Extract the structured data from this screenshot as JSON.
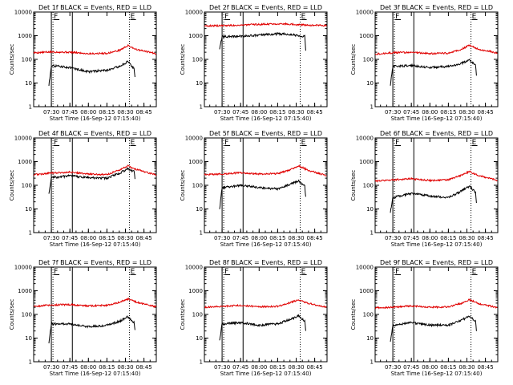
{
  "chart_data": [
    {
      "type": "line",
      "title": "Det 1f BLACK = Events, RED = LLD",
      "xlabel": "Start Time (16-Sep-12 07:15:40)",
      "ylabel": "Counts/sec",
      "xticks": [
        "07:30",
        "07:45",
        "08:00",
        "08:15",
        "08:30",
        "08:45"
      ],
      "yticks": [
        "1",
        "10",
        "100",
        "1000",
        "10000"
      ],
      "y_scale": "log",
      "ylim": [
        1,
        10000
      ],
      "xlim": [
        "07:15:40",
        "08:55:00"
      ],
      "markers": [
        {
          "label": "F",
          "time": "07:30"
        },
        {
          "label": "E",
          "time": "08:32"
        }
      ],
      "vlines_solid": [
        "07:30",
        "07:47"
      ],
      "vlines_dotted": [
        "07:30",
        "08:32"
      ],
      "series": [
        {
          "color": "#e00000",
          "x": [
            "07:15:40",
            "07:30",
            "07:45",
            "08:00",
            "08:15",
            "08:25",
            "08:32",
            "08:40",
            "08:50",
            "08:55"
          ],
          "y": [
            190,
            205,
            200,
            175,
            180,
            240,
            380,
            250,
            200,
            170
          ]
        },
        {
          "color": "#000000",
          "x": [
            "07:28",
            "07:30",
            "07:45",
            "08:00",
            "08:15",
            "08:25",
            "08:32",
            "08:37",
            "08:38"
          ],
          "y": [
            8,
            55,
            45,
            30,
            35,
            50,
            80,
            40,
            14
          ]
        }
      ]
    },
    {
      "type": "line",
      "title": "Det 2f BLACK = Events, RED = LLD",
      "xlabel": "Start Time (16-Sep-12 07:15:40)",
      "ylabel": "Counts/sec",
      "xticks": [
        "07:30",
        "07:45",
        "08:00",
        "08:15",
        "08:30",
        "08:45"
      ],
      "yticks": [
        "1",
        "10",
        "100",
        "1000",
        "10000"
      ],
      "y_scale": "log",
      "ylim": [
        1,
        10000
      ],
      "xlim": [
        "07:15:40",
        "08:55:00"
      ],
      "markers": [
        {
          "label": "F",
          "time": "07:30"
        },
        {
          "label": "E",
          "time": "08:32"
        }
      ],
      "vlines_solid": [
        "07:30",
        "07:47"
      ],
      "vlines_dotted": [
        "07:30",
        "08:32"
      ],
      "series": [
        {
          "color": "#e00000",
          "x": [
            "07:15:40",
            "07:30",
            "07:45",
            "08:00",
            "08:15",
            "08:25",
            "08:32",
            "08:40",
            "08:50",
            "08:55"
          ],
          "y": [
            2600,
            2650,
            2800,
            3000,
            3200,
            3100,
            2900,
            2800,
            2700,
            2650
          ]
        },
        {
          "color": "#000000",
          "x": [
            "07:28",
            "07:30",
            "07:45",
            "08:00",
            "08:15",
            "08:25",
            "08:32",
            "08:37",
            "08:38"
          ],
          "y": [
            280,
            900,
            950,
            1050,
            1200,
            1150,
            1000,
            950,
            130
          ]
        }
      ]
    },
    {
      "type": "line",
      "title": "Det 3f BLACK = Events, RED = LLD",
      "xlabel": "Start Time (16-Sep-12 07:15:40)",
      "ylabel": "Counts/sec",
      "xticks": [
        "07:30",
        "07:45",
        "08:00",
        "08:15",
        "08:30",
        "08:45"
      ],
      "yticks": [
        "1",
        "10",
        "100",
        "1000",
        "10000"
      ],
      "y_scale": "log",
      "ylim": [
        1,
        10000
      ],
      "xlim": [
        "07:15:40",
        "08:55:00"
      ],
      "markers": [
        {
          "label": "F",
          "time": "07:30"
        },
        {
          "label": "E",
          "time": "08:32"
        }
      ],
      "vlines_solid": [
        "07:30",
        "07:47"
      ],
      "vlines_dotted": [
        "07:30",
        "08:32"
      ],
      "series": [
        {
          "color": "#e00000",
          "x": [
            "07:15:40",
            "07:30",
            "07:45",
            "08:00",
            "08:15",
            "08:25",
            "08:32",
            "08:40",
            "08:50",
            "08:55"
          ],
          "y": [
            170,
            190,
            200,
            175,
            185,
            260,
            390,
            260,
            210,
            180
          ]
        },
        {
          "color": "#000000",
          "x": [
            "07:28",
            "07:30",
            "07:45",
            "08:00",
            "08:15",
            "08:25",
            "08:32",
            "08:37",
            "08:38"
          ],
          "y": [
            8,
            50,
            55,
            45,
            50,
            65,
            95,
            55,
            16
          ]
        }
      ]
    },
    {
      "type": "line",
      "title": "Det 4f BLACK = Events, RED = LLD",
      "xlabel": "Start Time (16-Sep-12 07:15:40)",
      "ylabel": "Counts/sec",
      "xticks": [
        "07:30",
        "07:45",
        "08:00",
        "08:15",
        "08:30",
        "08:45"
      ],
      "yticks": [
        "1",
        "10",
        "100",
        "1000",
        "10000"
      ],
      "y_scale": "log",
      "ylim": [
        1,
        10000
      ],
      "xlim": [
        "07:15:40",
        "08:55:00"
      ],
      "markers": [
        {
          "label": "F",
          "time": "07:30"
        },
        {
          "label": "E",
          "time": "08:32"
        }
      ],
      "vlines_solid": [
        "07:30",
        "07:47"
      ],
      "vlines_dotted": [
        "07:30",
        "08:32"
      ],
      "series": [
        {
          "color": "#e00000",
          "x": [
            "07:15:40",
            "07:30",
            "07:45",
            "08:00",
            "08:15",
            "08:25",
            "08:32",
            "08:40",
            "08:50",
            "08:55"
          ],
          "y": [
            280,
            330,
            360,
            300,
            280,
            450,
            650,
            450,
            320,
            270
          ]
        },
        {
          "color": "#000000",
          "x": [
            "07:28",
            "07:30",
            "07:45",
            "08:00",
            "08:15",
            "08:25",
            "08:32",
            "08:37",
            "08:38"
          ],
          "y": [
            45,
            210,
            250,
            210,
            200,
            320,
            500,
            380,
            140
          ]
        }
      ]
    },
    {
      "type": "line",
      "title": "Det 5f BLACK = Events, RED = LLD",
      "xlabel": "Start Time (16-Sep-12 07:15:40)",
      "ylabel": "Counts/sec",
      "xticks": [
        "07:30",
        "07:45",
        "08:00",
        "08:15",
        "08:30",
        "08:45"
      ],
      "yticks": [
        "1",
        "10",
        "100",
        "1000",
        "10000"
      ],
      "y_scale": "log",
      "ylim": [
        1,
        10000
      ],
      "xlim": [
        "07:15:40",
        "08:55:00"
      ],
      "markers": [
        {
          "label": "F",
          "time": "07:30"
        },
        {
          "label": "E",
          "time": "08:32"
        }
      ],
      "vlines_solid": [
        "07:30",
        "07:47"
      ],
      "vlines_dotted": [
        "07:30",
        "08:32"
      ],
      "series": [
        {
          "color": "#e00000",
          "x": [
            "07:15:40",
            "07:30",
            "07:45",
            "08:00",
            "08:15",
            "08:25",
            "08:32",
            "08:40",
            "08:50",
            "08:55"
          ],
          "y": [
            280,
            300,
            340,
            300,
            310,
            450,
            650,
            430,
            300,
            260
          ]
        },
        {
          "color": "#000000",
          "x": [
            "07:28",
            "07:30",
            "07:45",
            "08:00",
            "08:15",
            "08:25",
            "08:32",
            "08:37",
            "08:38"
          ],
          "y": [
            10,
            80,
            100,
            80,
            70,
            110,
            150,
            90,
            20
          ]
        }
      ]
    },
    {
      "type": "line",
      "title": "Det 6f BLACK = Events, RED = LLD",
      "xlabel": "Start Time (16-Sep-12 07:15:40)",
      "ylabel": "Counts/sec",
      "xticks": [
        "07:30",
        "07:45",
        "08:00",
        "08:15",
        "08:30",
        "08:45"
      ],
      "yticks": [
        "1",
        "10",
        "100",
        "1000",
        "10000"
      ],
      "y_scale": "log",
      "ylim": [
        1,
        10000
      ],
      "xlim": [
        "07:15:40",
        "08:55:00"
      ],
      "markers": [
        {
          "label": "F",
          "time": "07:30"
        },
        {
          "label": "E",
          "time": "08:32"
        }
      ],
      "vlines_solid": [
        "07:30",
        "07:47"
      ],
      "vlines_dotted": [
        "07:30",
        "08:32"
      ],
      "series": [
        {
          "color": "#e00000",
          "x": [
            "07:15:40",
            "07:30",
            "07:45",
            "08:00",
            "08:15",
            "08:25",
            "08:32",
            "08:40",
            "08:50",
            "08:55"
          ],
          "y": [
            150,
            170,
            190,
            160,
            170,
            260,
            380,
            250,
            190,
            160
          ]
        },
        {
          "color": "#000000",
          "x": [
            "07:28",
            "07:30",
            "07:45",
            "08:00",
            "08:15",
            "08:25",
            "08:32",
            "08:37",
            "08:38"
          ],
          "y": [
            7,
            30,
            45,
            35,
            30,
            55,
            90,
            50,
            13
          ]
        }
      ]
    },
    {
      "type": "line",
      "title": "Det 7f BLACK = Events, RED = LLD",
      "xlabel": "Start Time (16-Sep-12 07:15:40)",
      "ylabel": "Counts/sec",
      "xticks": [
        "07:30",
        "07:45",
        "08:00",
        "08:15",
        "08:30",
        "08:45"
      ],
      "yticks": [
        "1",
        "10",
        "100",
        "1000",
        "10000"
      ],
      "y_scale": "log",
      "ylim": [
        1,
        10000
      ],
      "xlim": [
        "07:15:40",
        "08:55:00"
      ],
      "markers": [
        {
          "label": "F",
          "time": "07:30"
        },
        {
          "label": "E",
          "time": "08:32"
        }
      ],
      "vlines_solid": [
        "07:30",
        "07:47"
      ],
      "vlines_dotted": [
        "07:30",
        "08:32"
      ],
      "series": [
        {
          "color": "#e00000",
          "x": [
            "07:15:40",
            "07:30",
            "07:45",
            "08:00",
            "08:15",
            "08:25",
            "08:32",
            "08:40",
            "08:50",
            "08:55"
          ],
          "y": [
            220,
            250,
            260,
            230,
            240,
            330,
            450,
            320,
            240,
            210
          ]
        },
        {
          "color": "#000000",
          "x": [
            "07:28",
            "07:30",
            "07:45",
            "08:00",
            "08:15",
            "08:25",
            "08:32",
            "08:37",
            "08:38"
          ],
          "y": [
            6,
            40,
            40,
            30,
            35,
            50,
            80,
            45,
            16
          ]
        }
      ]
    },
    {
      "type": "line",
      "title": "Det 8f BLACK = Events, RED = LLD",
      "xlabel": "Start Time (16-Sep-12 07:15:40)",
      "ylabel": "Counts/sec",
      "xticks": [
        "07:30",
        "07:45",
        "08:00",
        "08:15",
        "08:30",
        "08:45"
      ],
      "yticks": [
        "1",
        "10",
        "100",
        "1000",
        "10000"
      ],
      "y_scale": "log",
      "ylim": [
        1,
        10000
      ],
      "xlim": [
        "07:15:40",
        "08:55:00"
      ],
      "markers": [
        {
          "label": "F",
          "time": "07:30"
        },
        {
          "label": "E",
          "time": "08:32"
        }
      ],
      "vlines_solid": [
        "07:30",
        "07:47"
      ],
      "vlines_dotted": [
        "07:30",
        "08:32"
      ],
      "series": [
        {
          "color": "#e00000",
          "x": [
            "07:15:40",
            "07:30",
            "07:45",
            "08:00",
            "08:15",
            "08:25",
            "08:32",
            "08:40",
            "08:50",
            "08:55"
          ],
          "y": [
            200,
            220,
            240,
            210,
            220,
            310,
            420,
            290,
            230,
            200
          ]
        },
        {
          "color": "#000000",
          "x": [
            "07:28",
            "07:30",
            "07:45",
            "08:00",
            "08:15",
            "08:25",
            "08:32",
            "08:37",
            "08:38"
          ],
          "y": [
            8,
            40,
            45,
            35,
            40,
            60,
            90,
            50,
            16
          ]
        }
      ]
    },
    {
      "type": "line",
      "title": "Det 9f BLACK = Events, RED = LLD",
      "xlabel": "Start Time (16-Sep-12 07:15:40)",
      "ylabel": "Counts/sec",
      "xticks": [
        "07:30",
        "07:45",
        "08:00",
        "08:15",
        "08:30",
        "08:45"
      ],
      "yticks": [
        "1",
        "10",
        "100",
        "1000",
        "10000"
      ],
      "y_scale": "log",
      "ylim": [
        1,
        10000
      ],
      "xlim": [
        "07:15:40",
        "08:55:00"
      ],
      "markers": [
        {
          "label": "F",
          "time": "07:30"
        },
        {
          "label": "E",
          "time": "08:32"
        }
      ],
      "vlines_solid": [
        "07:30",
        "07:47"
      ],
      "vlines_dotted": [
        "07:30",
        "08:32"
      ],
      "series": [
        {
          "color": "#e00000",
          "x": [
            "07:15:40",
            "07:30",
            "07:45",
            "08:00",
            "08:15",
            "08:25",
            "08:32",
            "08:40",
            "08:50",
            "08:55"
          ],
          "y": [
            190,
            200,
            230,
            200,
            210,
            290,
            420,
            280,
            220,
            190
          ]
        },
        {
          "color": "#000000",
          "x": [
            "07:28",
            "07:30",
            "07:45",
            "08:00",
            "08:15",
            "08:25",
            "08:32",
            "08:37",
            "08:38"
          ],
          "y": [
            7,
            35,
            45,
            35,
            35,
            55,
            85,
            50,
            14
          ]
        }
      ]
    }
  ]
}
